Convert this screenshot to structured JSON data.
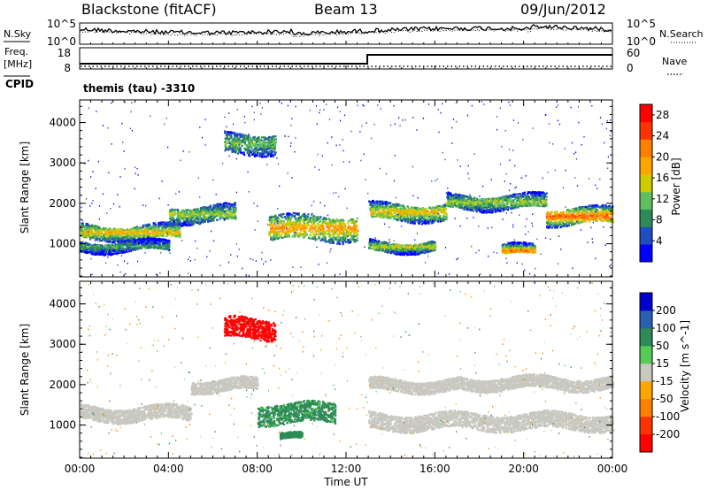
{
  "header": {
    "station": "Blackstone (fitACF)",
    "beam": "Beam 13",
    "date": "09/Jun/2012"
  },
  "noise_panel": {
    "left_label": "N.Sky",
    "right_label": "N.Search",
    "left_ticks": [
      "10^5",
      "10^0"
    ],
    "right_ticks": [
      "10^5",
      "10^0"
    ]
  },
  "freq_panel": {
    "left_label_1": "Freq.",
    "left_label_2": "[MHz]",
    "left_ticks": [
      "18",
      "8"
    ],
    "right_label": "Nave",
    "right_ticks": [
      "60",
      "0"
    ],
    "cpid_label": "CPID",
    "cpid_value": "themis (tau) -3310"
  },
  "colors": {
    "power_scale": [
      "#0000ff",
      "#1f4ec0",
      "#2e8b57",
      "#5fbf5f",
      "#cccc00",
      "#ffa500",
      "#ff7f00",
      "#ff3300",
      "#ff0000"
    ],
    "velocity_scale": [
      "#0000cc",
      "#2a60b0",
      "#2e8b57",
      "#55cc55",
      "#c8c8c0",
      "#ffa500",
      "#ff7f00",
      "#ff3300",
      "#ff0000"
    ]
  },
  "chart_data": [
    {
      "type": "heatmap",
      "title": "",
      "xlabel": "Time UT",
      "ylabel": "Slant Range [km]",
      "xlim": [
        0,
        24
      ],
      "ylim": [
        180,
        4560
      ],
      "x_ticks": [
        "00:00",
        "04:00",
        "08:00",
        "12:00",
        "16:00",
        "20:00",
        "00:00"
      ],
      "y_ticks": [
        "1000",
        "2000",
        "3000",
        "4000"
      ],
      "colorbar": {
        "label": "Power [dB]",
        "ticks": [
          "4",
          "8",
          "12",
          "16",
          "20",
          "24",
          "28"
        ],
        "range": [
          0,
          30
        ]
      },
      "features": [
        {
          "t_start": 0.0,
          "t_end": 4.5,
          "range_center": 1300,
          "range_width": 350,
          "value": 18
        },
        {
          "t_start": 0.0,
          "t_end": 4.0,
          "range_center": 950,
          "range_width": 250,
          "value": 10
        },
        {
          "t_start": 4.0,
          "t_end": 7.0,
          "range_center": 1750,
          "range_width": 400,
          "value": 14
        },
        {
          "t_start": 6.5,
          "t_end": 8.8,
          "range_center": 3500,
          "range_width": 500,
          "value": 12
        },
        {
          "t_start": 8.5,
          "t_end": 12.5,
          "range_center": 1400,
          "range_width": 600,
          "value": 20
        },
        {
          "t_start": 13.0,
          "t_end": 16.5,
          "range_center": 1800,
          "range_width": 400,
          "value": 18
        },
        {
          "t_start": 13.0,
          "t_end": 16.0,
          "range_center": 950,
          "range_width": 250,
          "value": 16
        },
        {
          "t_start": 16.5,
          "t_end": 21.0,
          "range_center": 2050,
          "range_width": 350,
          "value": 14
        },
        {
          "t_start": 19.0,
          "t_end": 20.5,
          "range_center": 850,
          "range_width": 250,
          "value": 22
        },
        {
          "t_start": 21.0,
          "t_end": 24.0,
          "range_center": 1700,
          "range_width": 400,
          "value": 24
        }
      ]
    },
    {
      "type": "heatmap",
      "title": "",
      "xlabel": "Time UT",
      "ylabel": "Slant Range [km]",
      "xlim": [
        0,
        24
      ],
      "ylim": [
        180,
        4560
      ],
      "x_ticks": [
        "00:00",
        "04:00",
        "08:00",
        "12:00",
        "16:00",
        "20:00",
        "00:00"
      ],
      "y_ticks": [
        "1000",
        "2000",
        "3000",
        "4000"
      ],
      "colorbar": {
        "label": "Velocity [m s^-1]",
        "ticks": [
          "200",
          "100",
          "50",
          "15",
          "-15",
          "-50",
          "-100",
          "-200"
        ]
      },
      "features": [
        {
          "t_start": 0.0,
          "t_end": 5.0,
          "range_center": 1300,
          "range_width": 350,
          "value": 0
        },
        {
          "t_start": 5.0,
          "t_end": 8.0,
          "range_center": 2000,
          "range_width": 300,
          "value": 0
        },
        {
          "t_start": 6.5,
          "t_end": 8.8,
          "range_center": 3400,
          "range_width": 500,
          "value": -200
        },
        {
          "t_start": 8.0,
          "t_end": 11.5,
          "range_center": 1300,
          "range_width": 500,
          "value": 40
        },
        {
          "t_start": 9.0,
          "t_end": 10.0,
          "range_center": 700,
          "range_width": 150,
          "value": 50
        },
        {
          "t_start": 13.0,
          "t_end": 17.0,
          "range_center": 2000,
          "range_width": 300,
          "value": 0
        },
        {
          "t_start": 13.0,
          "t_end": 24.0,
          "range_center": 1100,
          "range_width": 400,
          "value": 0
        },
        {
          "t_start": 17.0,
          "t_end": 24.0,
          "range_center": 2050,
          "range_width": 300,
          "value": 0
        }
      ]
    }
  ]
}
